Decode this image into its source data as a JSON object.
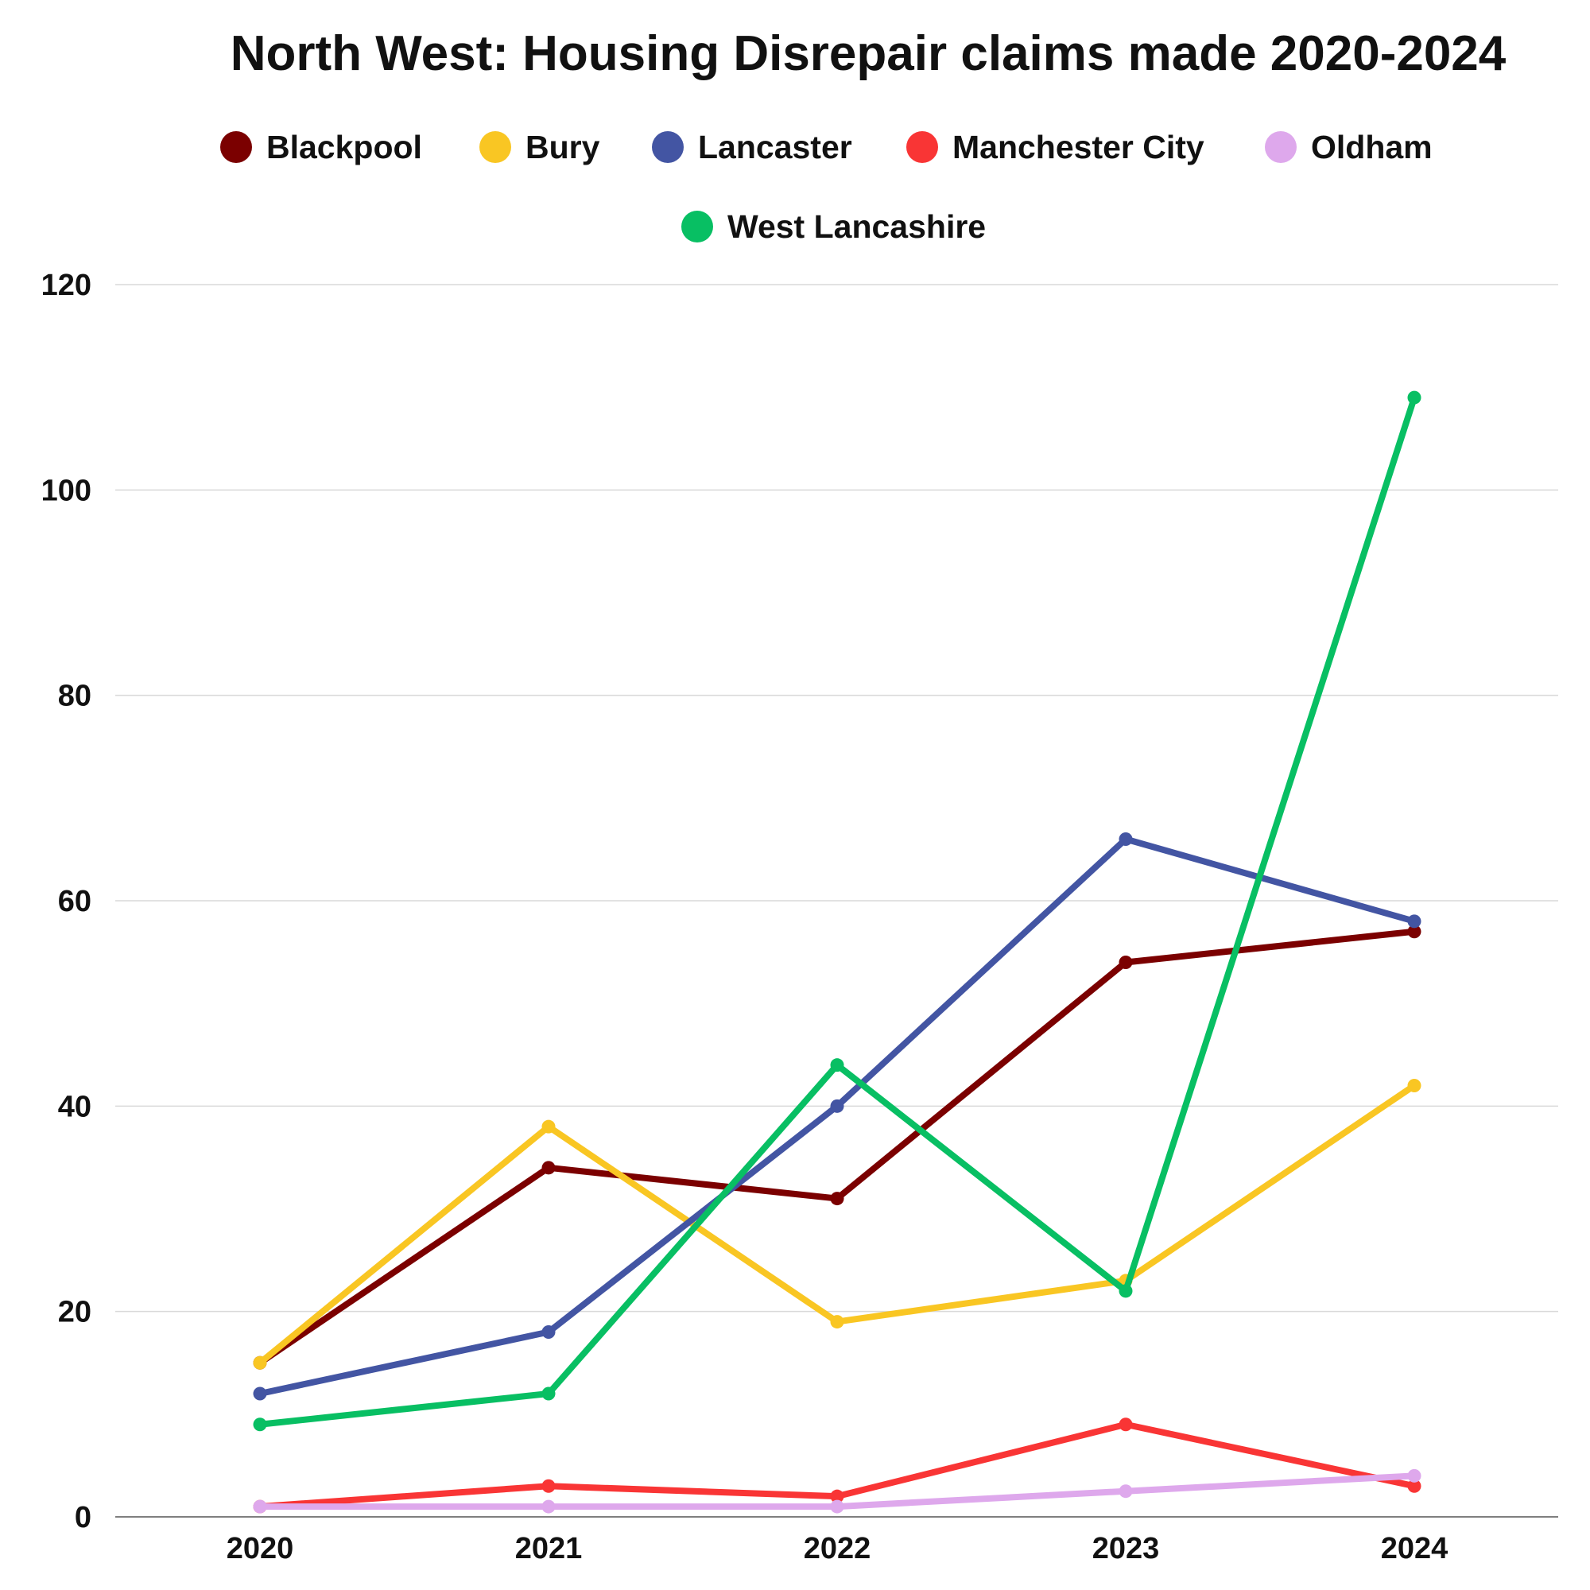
{
  "chart_data": {
    "type": "line",
    "title": "North West: Housing Disrepair claims made 2020-2024",
    "xlabel": "",
    "ylabel": "",
    "x": [
      "2020",
      "2021",
      "2022",
      "2023",
      "2024"
    ],
    "ylim": [
      0,
      120
    ],
    "yticks": [
      "0",
      "20",
      "40",
      "60",
      "80",
      "100",
      "120"
    ],
    "grid": true,
    "legend_position": "top",
    "series": [
      {
        "name": "Blackpool",
        "color": "#7b0000",
        "values": [
          15,
          34,
          31,
          54,
          57
        ]
      },
      {
        "name": "Bury",
        "color": "#f9c623",
        "values": [
          15,
          38,
          19,
          23,
          42
        ]
      },
      {
        "name": "Lancaster",
        "color": "#4355a3",
        "values": [
          12,
          18,
          40,
          66,
          58
        ]
      },
      {
        "name": "Manchester City",
        "color": "#f93535",
        "values": [
          1,
          3,
          2,
          9,
          3
        ]
      },
      {
        "name": "Oldham",
        "color": "#dea8ec",
        "values": [
          1,
          1,
          1,
          2.5,
          4
        ]
      },
      {
        "name": "West Lancashire",
        "color": "#08bf63",
        "values": [
          9,
          12,
          44,
          22,
          109
        ]
      }
    ]
  }
}
